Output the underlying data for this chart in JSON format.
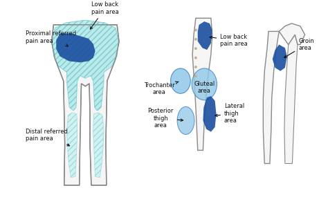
{
  "bg": "#ffffff",
  "body_fill": "#f5f5f5",
  "body_edge": "#888888",
  "proximal_fill": "#b2e8e8",
  "proximal_edge": "#6cc8cc",
  "distal_fill": "#ccf0f0",
  "distal_edge": "#88d8d8",
  "dark_blue": "#1a4fa0",
  "medium_blue": "#3a80c8",
  "light_blue": "#90c8e8",
  "gluteal_blue": "#90c8e8",
  "spine_dot": "#ccaa88",
  "text_color": "#111111",
  "arrow_color": "#111111",
  "labels": {
    "low_back": "Low back\npain area",
    "proximal": "Proximal referred\npain area",
    "distal": "Distal referred\npain area",
    "trochanter": "Trochanter\narea",
    "posterior_thigh": "Posterior\nthigh\narea",
    "low_back2": "Low back\npain area",
    "gluteal": "Gluteal\narea",
    "lateral_thigh": "Lateral\nthigh\narea",
    "groin": "Groin\narea"
  }
}
